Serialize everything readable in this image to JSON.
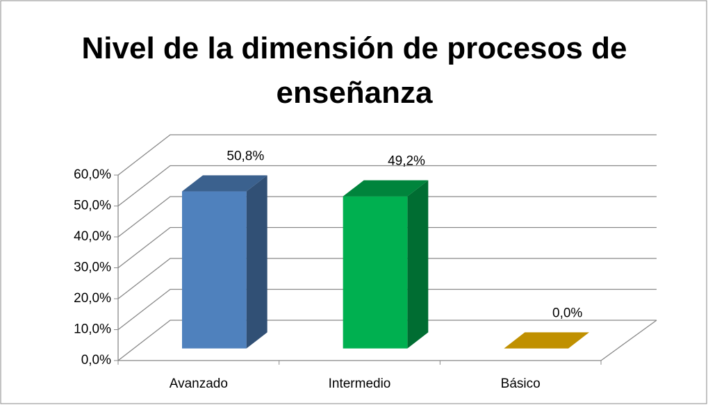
{
  "chart_data": {
    "type": "bar3d",
    "title": "Nivel de la dimensión de procesos de enseñanza",
    "categories": [
      "Avanzado",
      "Intermedio",
      "Básico"
    ],
    "values": [
      50.8,
      49.2,
      0.0
    ],
    "value_labels": [
      "50,8%",
      "49,2%",
      "0,0%"
    ],
    "colors": [
      "#4f81bd",
      "#00b050",
      "#c09000"
    ],
    "ylim": [
      0,
      60
    ],
    "yticks": [
      {
        "value": 0,
        "label": "0,0%"
      },
      {
        "value": 10,
        "label": "10,0%"
      },
      {
        "value": 20,
        "label": "20,0%"
      },
      {
        "value": 30,
        "label": "30,0%"
      },
      {
        "value": 40,
        "label": "40,0%"
      },
      {
        "value": 50,
        "label": "50,0%"
      },
      {
        "value": 60,
        "label": "60,0%"
      }
    ],
    "grid": true
  }
}
